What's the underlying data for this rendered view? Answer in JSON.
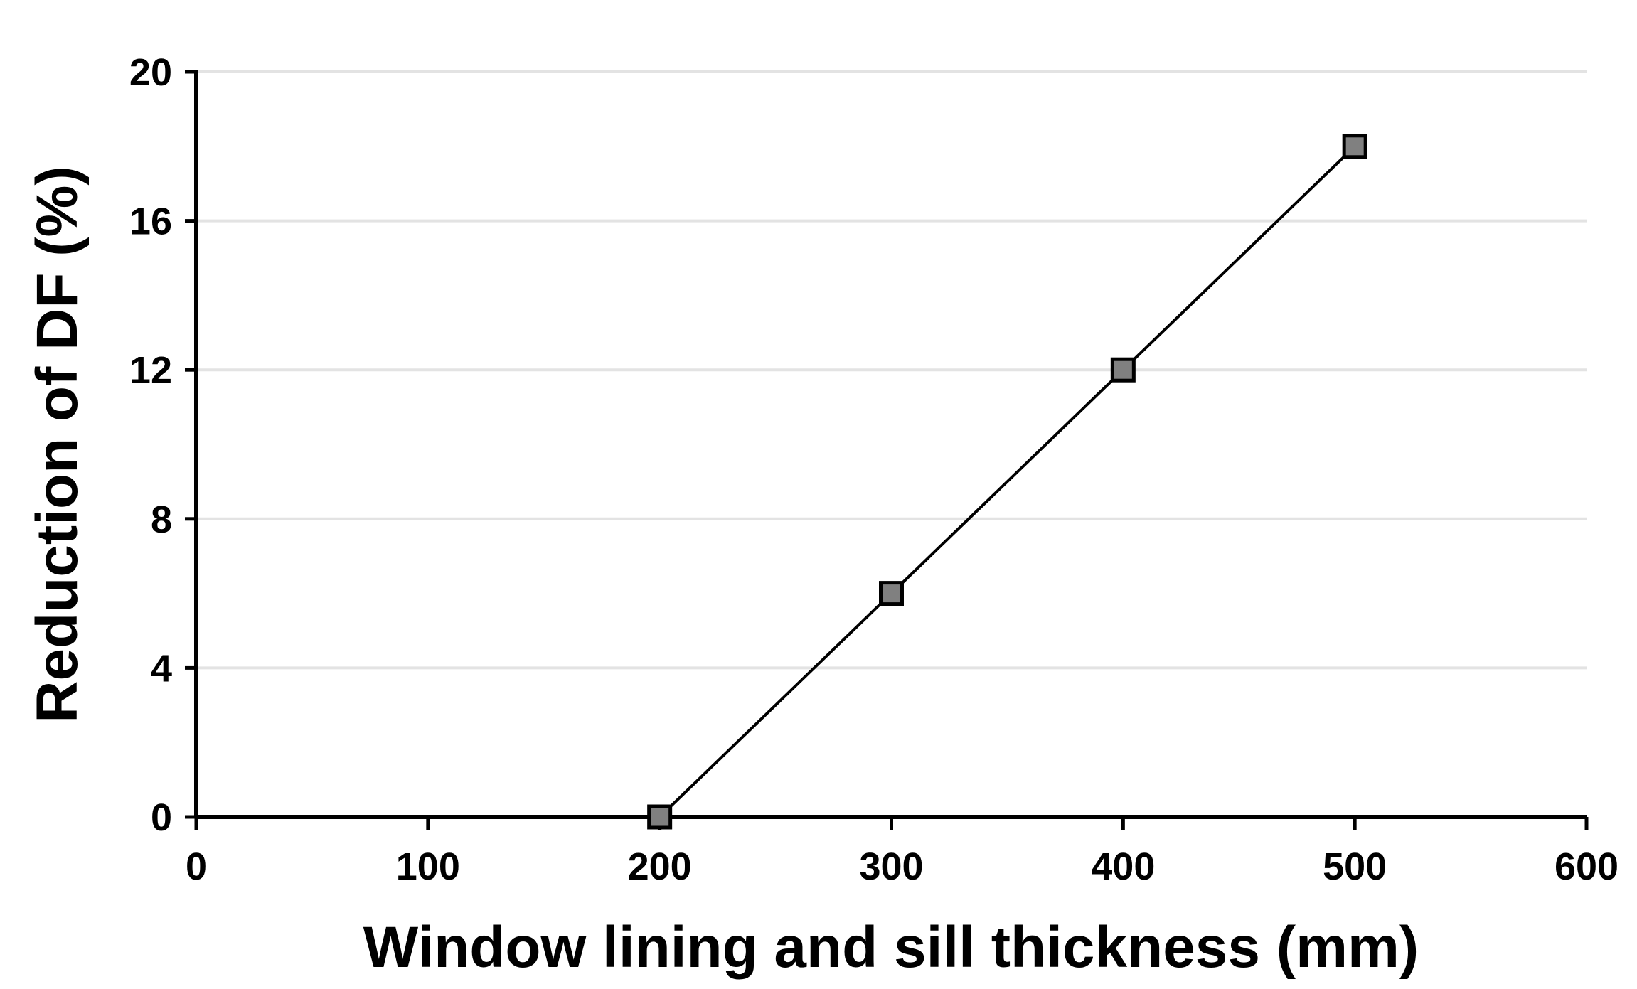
{
  "chart_data": {
    "type": "line",
    "x_label": "Window lining and sill thickness (mm)",
    "y_label": "Reduction of DF (%)",
    "x": [
      200,
      300,
      400,
      500
    ],
    "series": [
      {
        "color": "#000000",
        "marker_color": "#808080",
        "values": [
          0,
          6,
          12,
          18
        ]
      }
    ],
    "xlim": [
      0,
      600
    ],
    "xticks": [
      0,
      100,
      200,
      300,
      400,
      500,
      600
    ],
    "ylim": [
      0,
      20
    ],
    "yticks": [
      0,
      4,
      8,
      12,
      16,
      20
    ],
    "grid": true
  }
}
